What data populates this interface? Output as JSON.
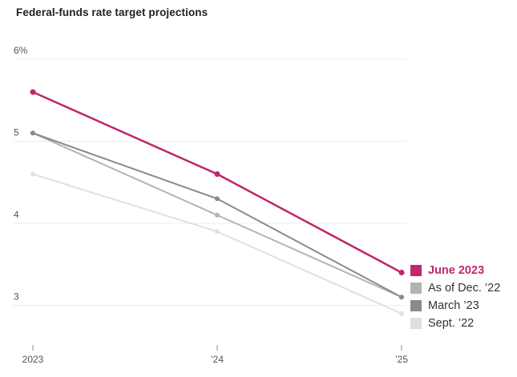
{
  "page": {
    "title": "Federal-funds rate target projections"
  },
  "chart_data": {
    "type": "line",
    "title": "Federal-funds rate target projections",
    "x": [
      2023,
      2024,
      2025
    ],
    "x_tick_labels": [
      "2023",
      "’24",
      "’25"
    ],
    "y_ticks": [
      6,
      5,
      4,
      3
    ],
    "y_tick_labels": [
      "6%",
      "5",
      "4",
      "3"
    ],
    "ylim": [
      2.5,
      6.1
    ],
    "unit": "percent",
    "grid": "horizontal-only",
    "legend_position": "right-middle",
    "series": [
      {
        "name": "June 2023",
        "values": [
          5.6,
          4.6,
          3.4
        ],
        "color": "#c0266c",
        "emphasis": true
      },
      {
        "name": "As of Dec. ’22",
        "values": [
          5.1,
          4.1,
          3.1
        ],
        "color": "#b3b3b3",
        "emphasis": false
      },
      {
        "name": "March ’23",
        "values": [
          5.1,
          4.3,
          3.1
        ],
        "color": "#8a8a8a",
        "emphasis": false
      },
      {
        "name": "Sept. ’22",
        "values": [
          4.6,
          3.9,
          2.9
        ],
        "color": "#e0e0e0",
        "emphasis": false
      }
    ],
    "draw_order": [
      3,
      1,
      2,
      0
    ]
  },
  "colors": {
    "accent_pink": "#c0266c",
    "gridline": "#ececec",
    "axis_text": "#555555",
    "legend_text": "#333333",
    "title_text": "#222222"
  }
}
